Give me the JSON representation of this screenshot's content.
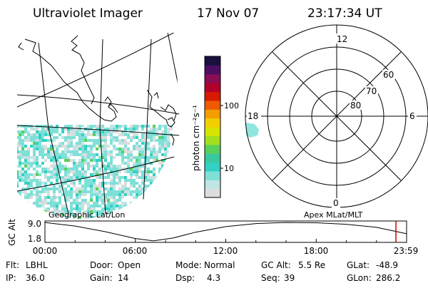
{
  "header": {
    "instrument": "Ultraviolet Imager",
    "date": "17 Nov 07",
    "time": "23:17:34 UT"
  },
  "colorbar": {
    "unit_label": "photon cm⁻²s⁻¹",
    "ticks": [
      {
        "label": "100",
        "value": 100
      },
      {
        "label": "10",
        "value": 10
      }
    ],
    "colors": [
      "#dddddd",
      "#bfe5e5",
      "#7fe0d8",
      "#33d1c4",
      "#39c9a0",
      "#59d05a",
      "#a3df1e",
      "#d6e400",
      "#f3cf00",
      "#f39d00",
      "#ef5a00",
      "#d81a00",
      "#b3002a",
      "#8a0d55",
      "#4b0f62",
      "#1a1040"
    ]
  },
  "map": {
    "caption": "Geographic Lat/Lon",
    "color_water": "#ffffff",
    "color_emission": "#7fe0d8"
  },
  "polar": {
    "caption": "Apex MLat/MLT",
    "mlt_labels": {
      "top": "12",
      "bottom": "0",
      "left": "18",
      "right": "6"
    },
    "lat_labels": [
      "60",
      "70",
      "80"
    ]
  },
  "altitude_plot": {
    "ylabel": "GC Alt",
    "y_ticks": [
      "9.0",
      "1.8"
    ],
    "x_ticks": [
      "00:00",
      "06:00",
      "12:00",
      "18:00",
      "23:59"
    ],
    "current_marker_color": "#cc0000",
    "series": {
      "hours": [
        0,
        2,
        4,
        6,
        7.2,
        8.5,
        10,
        12,
        14,
        16,
        18,
        20,
        22,
        23.2,
        24
      ],
      "alt_re": [
        9.0,
        7.6,
        5.4,
        2.7,
        1.8,
        2.9,
        5.2,
        7.4,
        8.6,
        9.0,
        8.9,
        8.3,
        7.1,
        5.6,
        4.6
      ]
    }
  },
  "info": {
    "flt_label": "Flt:",
    "flt_value": "LBHL",
    "ip_label": "IP:",
    "ip_value": "36.0",
    "door_label": "Door:",
    "door_value": "Open",
    "gain_label": "Gain:",
    "gain_value": "14",
    "mode_label": "Mode:",
    "mode_value": "Normal",
    "dsp_label": "Dsp:",
    "dsp_value": "4.3",
    "gcalt_label": "GC Alt:",
    "gcalt_value": "5.5 Re",
    "seq_label": "Seq:",
    "seq_value": "39",
    "glat_label": "GLat:",
    "glat_value": "-48.9",
    "glon_label": "GLon:",
    "glon_value": "286.2"
  }
}
